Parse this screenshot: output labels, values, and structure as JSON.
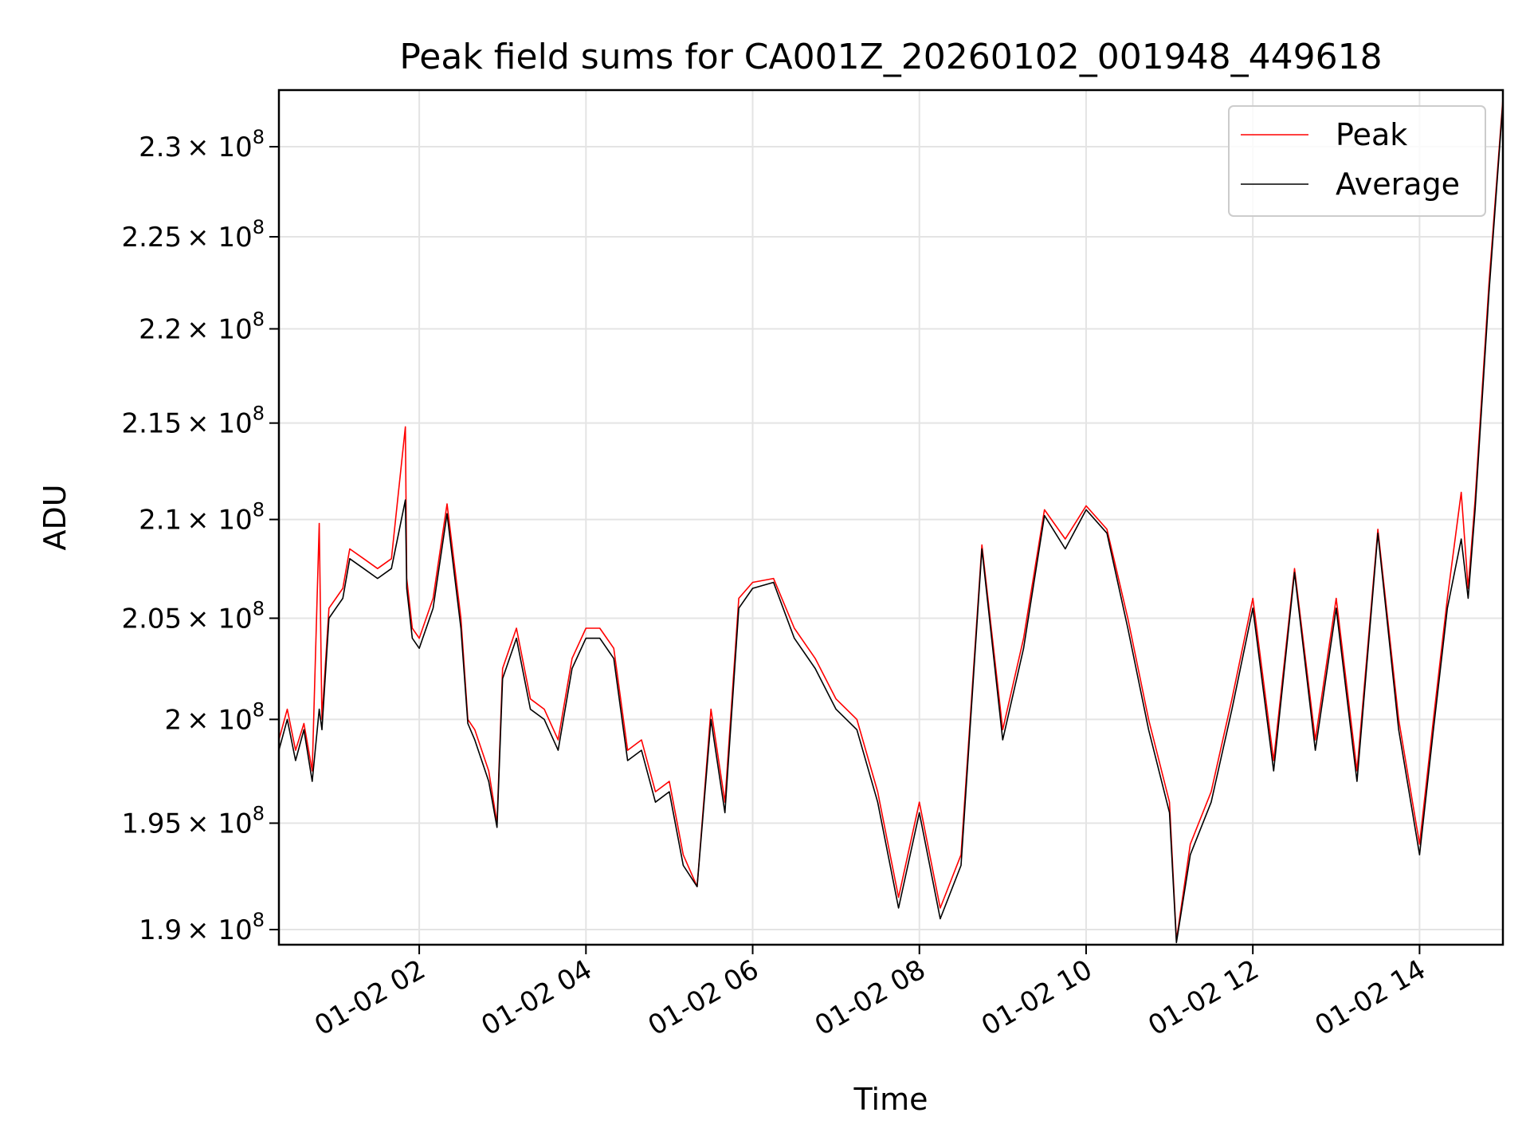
{
  "chart_data": {
    "type": "line",
    "title": "Peak field sums for CA001Z_20260102_001948_449618",
    "xlabel": "Time",
    "ylabel": "ADU",
    "y_scale": "log",
    "grid": true,
    "legend_position": "top-right",
    "xlim": [
      "2026-01-02 00:19",
      "2026-01-02 15:00"
    ],
    "ylim": [
      189300000,
      233200000
    ],
    "x_ticks": [
      {
        "value": "2026-01-02 02:00",
        "label": "01-02 02"
      },
      {
        "value": "2026-01-02 04:00",
        "label": "01-02 04"
      },
      {
        "value": "2026-01-02 06:00",
        "label": "01-02 06"
      },
      {
        "value": "2026-01-02 08:00",
        "label": "01-02 08"
      },
      {
        "value": "2026-01-02 10:00",
        "label": "01-02 10"
      },
      {
        "value": "2026-01-02 12:00",
        "label": "01-02 12"
      },
      {
        "value": "2026-01-02 14:00",
        "label": "01-02 14"
      }
    ],
    "y_ticks": [
      {
        "value": 190000000,
        "mantissa": "1.9"
      },
      {
        "value": 195000000,
        "mantissa": "1.95"
      },
      {
        "value": 200000000,
        "mantissa": "2"
      },
      {
        "value": 205000000,
        "mantissa": "2.05"
      },
      {
        "value": 210000000,
        "mantissa": "2.1"
      },
      {
        "value": 215000000,
        "mantissa": "2.15"
      },
      {
        "value": 220000000,
        "mantissa": "2.2"
      },
      {
        "value": 225000000,
        "mantissa": "2.25"
      },
      {
        "value": 230000000,
        "mantissa": "2.3"
      }
    ],
    "y_tick_suffix": "× 10",
    "y_tick_exponent": "8",
    "series": [
      {
        "name": "Peak",
        "color": "#ff0000",
        "x": [
          "2026-01-02 00:19",
          "2026-01-02 00:25",
          "2026-01-02 00:31",
          "2026-01-02 00:37",
          "2026-01-02 00:43",
          "2026-01-02 00:48",
          "2026-01-02 00:50",
          "2026-01-02 00:55",
          "2026-01-02 01:00",
          "2026-01-02 01:05",
          "2026-01-02 01:10",
          "2026-01-02 01:20",
          "2026-01-02 01:30",
          "2026-01-02 01:40",
          "2026-01-02 01:50",
          "2026-01-02 01:51",
          "2026-01-02 01:55",
          "2026-01-02 02:00",
          "2026-01-02 02:10",
          "2026-01-02 02:20",
          "2026-01-02 02:30",
          "2026-01-02 02:35",
          "2026-01-02 02:40",
          "2026-01-02 02:50",
          "2026-01-02 02:56",
          "2026-01-02 03:00",
          "2026-01-02 03:10",
          "2026-01-02 03:20",
          "2026-01-02 03:30",
          "2026-01-02 03:40",
          "2026-01-02 03:50",
          "2026-01-02 04:00",
          "2026-01-02 04:10",
          "2026-01-02 04:20",
          "2026-01-02 04:30",
          "2026-01-02 04:40",
          "2026-01-02 04:50",
          "2026-01-02 05:00",
          "2026-01-02 05:10",
          "2026-01-02 05:20",
          "2026-01-02 05:30",
          "2026-01-02 05:40",
          "2026-01-02 05:50",
          "2026-01-02 06:00",
          "2026-01-02 06:15",
          "2026-01-02 06:30",
          "2026-01-02 06:45",
          "2026-01-02 07:00",
          "2026-01-02 07:15",
          "2026-01-02 07:30",
          "2026-01-02 07:45",
          "2026-01-02 08:00",
          "2026-01-02 08:15",
          "2026-01-02 08:30",
          "2026-01-02 08:45",
          "2026-01-02 09:00",
          "2026-01-02 09:15",
          "2026-01-02 09:30",
          "2026-01-02 09:45",
          "2026-01-02 10:00",
          "2026-01-02 10:15",
          "2026-01-02 10:30",
          "2026-01-02 10:45",
          "2026-01-02 11:00",
          "2026-01-02 11:05",
          "2026-01-02 11:15",
          "2026-01-02 11:30",
          "2026-01-02 11:45",
          "2026-01-02 12:00",
          "2026-01-02 12:15",
          "2026-01-02 12:30",
          "2026-01-02 12:45",
          "2026-01-02 13:00",
          "2026-01-02 13:15",
          "2026-01-02 13:30",
          "2026-01-02 13:45",
          "2026-01-02 14:00",
          "2026-01-02 14:10",
          "2026-01-02 14:20",
          "2026-01-02 14:30",
          "2026-01-02 14:35",
          "2026-01-02 14:40",
          "2026-01-02 14:50",
          "2026-01-02 15:00"
        ],
        "y": [
          199000000,
          200500000,
          198500000,
          199800000,
          197500000,
          209800000,
          200000000,
          205500000,
          206000000,
          206500000,
          208500000,
          208000000,
          207500000,
          208000000,
          214800000,
          207000000,
          204500000,
          204000000,
          206000000,
          210800000,
          205000000,
          200000000,
          199500000,
          197500000,
          195000000,
          202500000,
          204500000,
          201000000,
          200500000,
          199000000,
          203000000,
          204500000,
          204500000,
          203500000,
          198500000,
          199000000,
          196500000,
          197000000,
          193500000,
          192000000,
          200500000,
          196000000,
          206000000,
          206800000,
          207000000,
          204500000,
          203000000,
          201000000,
          200000000,
          196500000,
          191500000,
          196000000,
          191000000,
          193500000,
          208700000,
          199500000,
          204000000,
          210500000,
          209000000,
          210700000,
          209500000,
          205000000,
          200000000,
          196000000,
          189500000,
          194000000,
          196500000,
          201000000,
          206000000,
          198000000,
          207500000,
          199000000,
          206000000,
          197500000,
          209500000,
          200000000,
          194000000,
          200000000,
          206000000,
          211400000,
          206500000,
          211000000,
          222500000,
          232700000
        ]
      },
      {
        "name": "Average",
        "color": "#000000",
        "x": [
          "2026-01-02 00:19",
          "2026-01-02 00:25",
          "2026-01-02 00:31",
          "2026-01-02 00:37",
          "2026-01-02 00:43",
          "2026-01-02 00:48",
          "2026-01-02 00:50",
          "2026-01-02 00:55",
          "2026-01-02 01:00",
          "2026-01-02 01:05",
          "2026-01-02 01:10",
          "2026-01-02 01:20",
          "2026-01-02 01:30",
          "2026-01-02 01:40",
          "2026-01-02 01:50",
          "2026-01-02 01:51",
          "2026-01-02 01:55",
          "2026-01-02 02:00",
          "2026-01-02 02:10",
          "2026-01-02 02:20",
          "2026-01-02 02:30",
          "2026-01-02 02:35",
          "2026-01-02 02:40",
          "2026-01-02 02:50",
          "2026-01-02 02:56",
          "2026-01-02 03:00",
          "2026-01-02 03:10",
          "2026-01-02 03:20",
          "2026-01-02 03:30",
          "2026-01-02 03:40",
          "2026-01-02 03:50",
          "2026-01-02 04:00",
          "2026-01-02 04:10",
          "2026-01-02 04:20",
          "2026-01-02 04:30",
          "2026-01-02 04:40",
          "2026-01-02 04:50",
          "2026-01-02 05:00",
          "2026-01-02 05:10",
          "2026-01-02 05:20",
          "2026-01-02 05:30",
          "2026-01-02 05:40",
          "2026-01-02 05:50",
          "2026-01-02 06:00",
          "2026-01-02 06:15",
          "2026-01-02 06:30",
          "2026-01-02 06:45",
          "2026-01-02 07:00",
          "2026-01-02 07:15",
          "2026-01-02 07:30",
          "2026-01-02 07:45",
          "2026-01-02 08:00",
          "2026-01-02 08:15",
          "2026-01-02 08:30",
          "2026-01-02 08:45",
          "2026-01-02 09:00",
          "2026-01-02 09:15",
          "2026-01-02 09:30",
          "2026-01-02 09:45",
          "2026-01-02 10:00",
          "2026-01-02 10:15",
          "2026-01-02 10:30",
          "2026-01-02 10:45",
          "2026-01-02 11:00",
          "2026-01-02 11:05",
          "2026-01-02 11:15",
          "2026-01-02 11:30",
          "2026-01-02 11:45",
          "2026-01-02 12:00",
          "2026-01-02 12:15",
          "2026-01-02 12:30",
          "2026-01-02 12:45",
          "2026-01-02 13:00",
          "2026-01-02 13:15",
          "2026-01-02 13:30",
          "2026-01-02 13:45",
          "2026-01-02 14:00",
          "2026-01-02 14:10",
          "2026-01-02 14:20",
          "2026-01-02 14:30",
          "2026-01-02 14:35",
          "2026-01-02 14:40",
          "2026-01-02 14:50",
          "2026-01-02 15:00"
        ],
        "y": [
          198500000,
          200000000,
          198000000,
          199500000,
          197000000,
          200500000,
          199500000,
          205000000,
          205500000,
          206000000,
          208000000,
          207500000,
          207000000,
          207500000,
          211000000,
          206500000,
          204000000,
          203500000,
          205500000,
          210300000,
          204500000,
          199800000,
          199000000,
          197000000,
          194800000,
          202000000,
          204000000,
          200500000,
          200000000,
          198500000,
          202500000,
          204000000,
          204000000,
          203000000,
          198000000,
          198500000,
          196000000,
          196500000,
          193000000,
          192000000,
          200000000,
          195500000,
          205500000,
          206500000,
          206800000,
          204000000,
          202500000,
          200500000,
          199500000,
          196000000,
          191000000,
          195500000,
          190500000,
          193000000,
          208500000,
          199000000,
          203500000,
          210200000,
          208500000,
          210500000,
          209300000,
          204500000,
          199500000,
          195500000,
          189400000,
          193500000,
          196000000,
          200500000,
          205500000,
          197500000,
          207300000,
          198500000,
          205500000,
          197000000,
          209300000,
          199500000,
          193500000,
          199500000,
          205500000,
          209000000,
          206000000,
          210500000,
          222000000,
          232500000
        ]
      }
    ]
  }
}
